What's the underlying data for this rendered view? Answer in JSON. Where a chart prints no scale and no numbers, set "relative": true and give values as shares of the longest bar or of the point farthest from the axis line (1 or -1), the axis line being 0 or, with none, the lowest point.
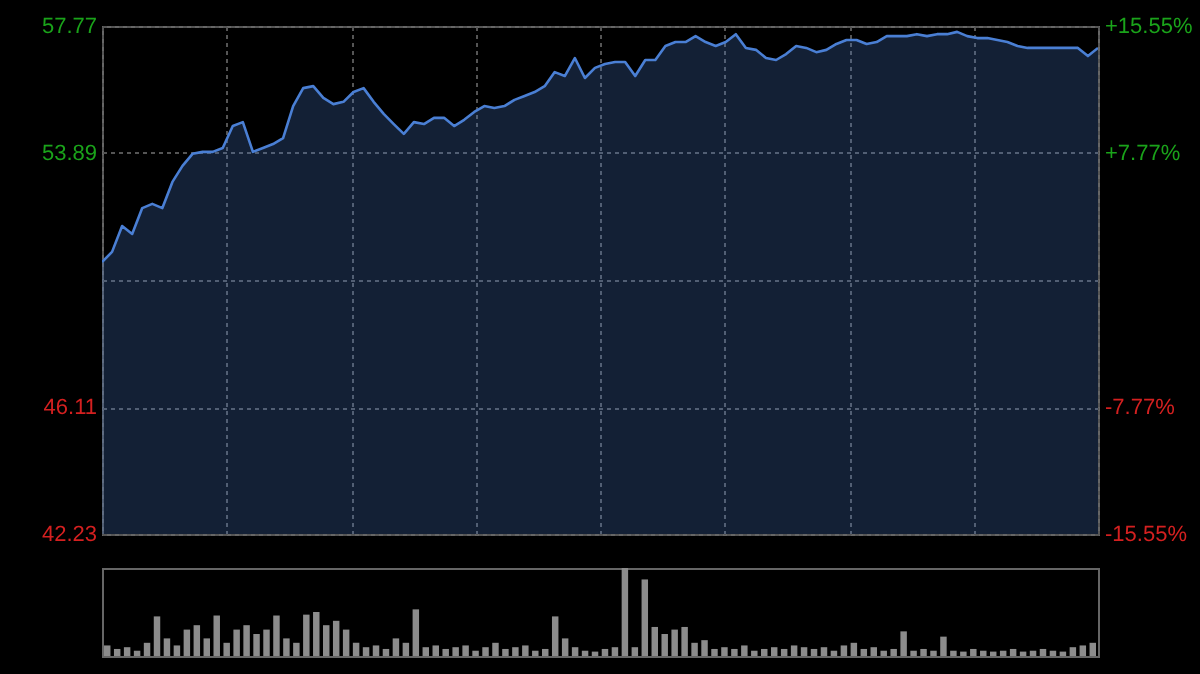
{
  "chart_data": [
    {
      "type": "area",
      "categories": [
        null,
        null,
        null,
        null,
        null,
        null,
        null,
        null,
        null,
        null,
        null,
        null,
        null,
        null,
        null,
        null,
        null,
        null,
        null,
        null,
        null,
        null,
        null,
        null,
        null,
        null,
        null,
        null,
        null,
        null,
        null,
        null,
        null,
        null,
        null,
        null,
        null,
        null,
        null,
        null,
        null,
        null,
        null,
        null,
        null,
        null,
        null,
        null,
        null,
        null,
        null,
        null,
        null,
        null,
        null,
        null,
        null,
        null,
        null,
        null,
        null,
        null,
        null,
        null,
        null,
        null,
        null,
        null,
        null,
        null,
        null,
        null,
        null,
        null,
        null,
        null,
        null,
        null,
        null,
        null,
        null,
        null,
        null,
        null,
        null,
        null,
        null,
        null,
        null,
        null,
        null,
        null,
        null,
        null,
        null,
        null,
        null,
        null,
        null,
        null
      ],
      "series": [
        {
          "color": "#4a7fd4",
          "values": [
            50.55,
            50.86,
            51.65,
            51.41,
            52.2,
            52.33,
            52.2,
            53.0,
            53.49,
            53.86,
            53.92,
            53.92,
            54.04,
            54.71,
            54.83,
            53.92,
            54.04,
            54.16,
            54.34,
            55.32,
            55.87,
            55.93,
            55.57,
            55.38,
            55.45,
            55.75,
            55.87,
            55.45,
            55.08,
            54.77,
            54.47,
            54.83,
            54.77,
            54.96,
            54.96,
            54.71,
            54.9,
            55.14,
            55.32,
            55.26,
            55.32,
            55.51,
            55.63,
            55.75,
            55.93,
            56.36,
            56.24,
            56.79,
            56.18,
            56.49,
            56.61,
            56.67,
            56.67,
            56.24,
            56.73,
            56.73,
            57.16,
            57.28,
            57.28,
            57.46,
            57.28,
            57.16,
            57.28,
            57.52,
            57.1,
            57.04,
            56.79,
            56.73,
            56.91,
            57.16,
            57.1,
            56.97,
            57.04,
            57.22,
            57.34,
            57.34,
            57.22,
            57.28,
            57.46,
            57.46,
            57.46,
            57.52,
            57.46,
            57.52,
            57.52,
            57.59,
            57.46,
            57.4,
            57.4,
            57.34,
            57.28,
            57.16,
            57.1,
            57.1,
            57.1,
            57.1,
            57.1,
            57.1,
            56.85,
            57.1
          ]
        }
      ],
      "ylim": [
        42.23,
        57.77
      ],
      "yticks": [
        42.23,
        46.11,
        {
          "value": 50.0,
          "label": null
        },
        53.89,
        57.77
      ],
      "y2lim": [
        -15.55,
        15.55
      ],
      "y2ticks": [
        {
          "value": -15.55,
          "label": "-15.55%"
        },
        {
          "value": -7.77,
          "label": "-7.77%"
        },
        {
          "value": 0,
          "label": null
        },
        {
          "value": 7.77,
          "label": "+7.77%"
        },
        {
          "value": 15.55,
          "label": "+15.55%"
        }
      ],
      "grid": true,
      "tick_labels": "y"
    },
    {
      "type": "bar",
      "relative": true,
      "color": "#8c8c8c",
      "categories": [
        null,
        null,
        null,
        null,
        null,
        null,
        null,
        null,
        null,
        null,
        null,
        null,
        null,
        null,
        null,
        null,
        null,
        null,
        null,
        null,
        null,
        null,
        null,
        null,
        null,
        null,
        null,
        null,
        null,
        null,
        null,
        null,
        null,
        null,
        null,
        null,
        null,
        null,
        null,
        null,
        null,
        null,
        null,
        null,
        null,
        null,
        null,
        null,
        null,
        null,
        null,
        null,
        null,
        null,
        null,
        null,
        null,
        null,
        null,
        null,
        null,
        null,
        null,
        null,
        null,
        null,
        null,
        null,
        null,
        null,
        null,
        null,
        null,
        null,
        null,
        null,
        null,
        null,
        null,
        null,
        null,
        null,
        null,
        null,
        null,
        null,
        null,
        null,
        null,
        null,
        null,
        null,
        null,
        null,
        null,
        null,
        null,
        null,
        null,
        null
      ],
      "values": [
        0.12,
        0.08,
        0.1,
        0.06,
        0.15,
        0.45,
        0.2,
        0.12,
        0.3,
        0.35,
        0.2,
        0.46,
        0.15,
        0.3,
        0.35,
        0.25,
        0.3,
        0.46,
        0.2,
        0.15,
        0.47,
        0.5,
        0.35,
        0.4,
        0.3,
        0.15,
        0.1,
        0.12,
        0.08,
        0.2,
        0.15,
        0.53,
        0.1,
        0.12,
        0.08,
        0.1,
        0.12,
        0.06,
        0.1,
        0.15,
        0.08,
        0.1,
        0.12,
        0.06,
        0.08,
        0.45,
        0.2,
        0.1,
        0.06,
        0.05,
        0.08,
        0.1,
        1.0,
        0.1,
        0.87,
        0.33,
        0.25,
        0.3,
        0.33,
        0.15,
        0.18,
        0.08,
        0.1,
        0.08,
        0.12,
        0.06,
        0.08,
        0.1,
        0.08,
        0.12,
        0.1,
        0.08,
        0.1,
        0.06,
        0.12,
        0.15,
        0.08,
        0.1,
        0.06,
        0.08,
        0.28,
        0.06,
        0.08,
        0.06,
        0.22,
        0.06,
        0.05,
        0.08,
        0.06,
        0.05,
        0.06,
        0.08,
        0.05,
        0.06,
        0.08,
        0.06,
        0.05,
        0.1,
        0.12,
        0.15
      ]
    }
  ]
}
